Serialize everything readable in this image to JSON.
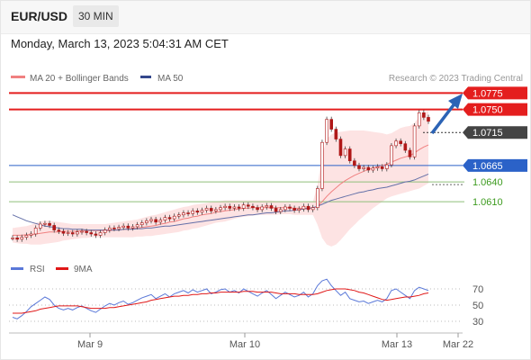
{
  "header": {
    "symbol": "EUR/USD",
    "timeframe": "30 MIN",
    "timestamp": "Monday, March 13, 2023 5:04:31 AM CET"
  },
  "colors": {
    "resistance": "#e41e1e",
    "support": "#2b62c8",
    "pivot": "#444444",
    "target": "#3d9b1f",
    "bollinger_fill": "#fde0e0",
    "ma20": "#f08080",
    "ma50": "#6470a8",
    "rsi": "#5a78d8",
    "rsi_ma": "#e01818",
    "arrow": "#2c63b5",
    "candle": "#b01818"
  },
  "chart_data": [
    {
      "type": "candlestick",
      "legend": [
        {
          "label": "MA 20 + Bollinger Bands",
          "color": "#f08080"
        },
        {
          "label": "MA 50",
          "color": "#34478c"
        }
      ],
      "credit": "Research © 2023 Trading Central",
      "x_ticks": [
        "Mar 9",
        "Mar 10",
        "Mar 13",
        "Mar 22"
      ],
      "ylim": [
        1.0535,
        1.0785
      ],
      "levels": [
        {
          "value": 1.0775,
          "label": "1.0775",
          "role": "resistance"
        },
        {
          "value": 1.075,
          "label": "1.0750",
          "role": "resistance"
        },
        {
          "value": 1.0715,
          "label": "1.0715",
          "role": "pivot"
        },
        {
          "value": 1.0665,
          "label": "1.0665",
          "role": "support"
        },
        {
          "value": 1.064,
          "label": "1.0640",
          "role": "target"
        },
        {
          "value": 1.061,
          "label": "1.0610",
          "role": "target"
        }
      ],
      "close": [
        1.0555,
        1.0553,
        1.0556,
        1.0559,
        1.0561,
        1.057,
        1.0576,
        1.0577,
        1.0574,
        1.0567,
        1.0565,
        1.0562,
        1.0563,
        1.0561,
        1.0564,
        1.0565,
        1.0563,
        1.0561,
        1.0559,
        1.0563,
        1.0567,
        1.057,
        1.0569,
        1.0571,
        1.0573,
        1.057,
        1.0572,
        1.0575,
        1.0578,
        1.0581,
        1.0583,
        1.0579,
        1.0582,
        1.0586,
        1.0584,
        1.0588,
        1.059,
        1.0593,
        1.0592,
        1.0596,
        1.0594,
        1.0597,
        1.06,
        1.0596,
        1.0598,
        1.0601,
        1.0603,
        1.06,
        1.0602,
        1.06,
        1.0605,
        1.0603,
        1.0601,
        1.0598,
        1.0602,
        1.0604,
        1.06,
        1.0595,
        1.0598,
        1.0602,
        1.06,
        1.0597,
        1.0599,
        1.0603,
        1.0598,
        1.0601,
        1.063,
        1.07,
        1.0735,
        1.072,
        1.0705,
        1.068,
        1.069,
        1.0672,
        1.0665,
        1.066,
        1.0662,
        1.0658,
        1.0661,
        1.0663,
        1.066,
        1.0666,
        1.0695,
        1.0702,
        1.0698,
        1.0688,
        1.0678,
        1.0725,
        1.0745,
        1.0738,
        1.0732
      ],
      "ma20": [
        1.0559,
        1.0559,
        1.0559,
        1.056,
        1.056,
        1.0561,
        1.0562,
        1.0563,
        1.0564,
        1.0564,
        1.0564,
        1.0565,
        1.0565,
        1.0565,
        1.0565,
        1.0566,
        1.0566,
        1.0566,
        1.0566,
        1.0566,
        1.0566,
        1.0566,
        1.0567,
        1.0567,
        1.0568,
        1.0568,
        1.0569,
        1.057,
        1.0571,
        1.0572,
        1.0573,
        1.0574,
        1.0576,
        1.0577,
        1.0579,
        1.058,
        1.0582,
        1.0584,
        1.0585,
        1.0587,
        1.0588,
        1.059,
        1.0591,
        1.0592,
        1.0594,
        1.0595,
        1.0596,
        1.0597,
        1.0598,
        1.0599,
        1.06,
        1.06,
        1.0601,
        1.0601,
        1.0601,
        1.0601,
        1.0601,
        1.0601,
        1.0601,
        1.0601,
        1.0601,
        1.06,
        1.06,
        1.06,
        1.06,
        1.06,
        1.0603,
        1.061,
        1.0618,
        1.0625,
        1.0631,
        1.0637,
        1.0642,
        1.0646,
        1.065,
        1.0653,
        1.0656,
        1.0659,
        1.0661,
        1.0663,
        1.0665,
        1.0667,
        1.067,
        1.0673,
        1.0676,
        1.0678,
        1.068,
        1.0684,
        1.0689,
        1.0693,
        1.0696
      ],
      "ma50": [
        1.059,
        1.0587,
        1.0584,
        1.0581,
        1.0579,
        1.0577,
        1.0575,
        1.0573,
        1.0572,
        1.0571,
        1.057,
        1.0569,
        1.0569,
        1.0568,
        1.0568,
        1.0568,
        1.0567,
        1.0567,
        1.0567,
        1.0567,
        1.0567,
        1.0567,
        1.0567,
        1.0567,
        1.0568,
        1.0568,
        1.0568,
        1.0569,
        1.0569,
        1.057,
        1.057,
        1.0571,
        1.0572,
        1.0573,
        1.0573,
        1.0574,
        1.0575,
        1.0576,
        1.0577,
        1.0578,
        1.0579,
        1.058,
        1.0581,
        1.0582,
        1.0583,
        1.0584,
        1.0585,
        1.0586,
        1.0587,
        1.0588,
        1.0589,
        1.059,
        1.059,
        1.0591,
        1.0592,
        1.0593,
        1.0593,
        1.0594,
        1.0595,
        1.0596,
        1.0596,
        1.0597,
        1.0598,
        1.0599,
        1.06,
        1.0601,
        1.0603,
        1.0606,
        1.0609,
        1.0612,
        1.0614,
        1.0616,
        1.0618,
        1.062,
        1.0622,
        1.0624,
        1.0625,
        1.0627,
        1.0628,
        1.063,
        1.0631,
        1.0632,
        1.0634,
        1.0636,
        1.0638,
        1.064,
        1.0641,
        1.0643,
        1.0646,
        1.0649,
        1.0652
      ],
      "bb_upper": [
        1.057,
        1.0571,
        1.0572,
        1.0573,
        1.0575,
        1.0578,
        1.058,
        1.0581,
        1.0581,
        1.058,
        1.0579,
        1.0578,
        1.0577,
        1.0576,
        1.0576,
        1.0576,
        1.0576,
        1.0576,
        1.0576,
        1.0576,
        1.0576,
        1.0577,
        1.0578,
        1.0579,
        1.058,
        1.0581,
        1.0582,
        1.0583,
        1.0585,
        1.0587,
        1.0589,
        1.059,
        1.0592,
        1.0594,
        1.0596,
        1.0598,
        1.06,
        1.0602,
        1.0603,
        1.0605,
        1.0606,
        1.0607,
        1.0608,
        1.0609,
        1.061,
        1.0611,
        1.0612,
        1.0612,
        1.0612,
        1.0612,
        1.0612,
        1.0612,
        1.0612,
        1.0612,
        1.0612,
        1.0612,
        1.0612,
        1.0611,
        1.0611,
        1.0611,
        1.0611,
        1.061,
        1.061,
        1.061,
        1.061,
        1.061,
        1.0635,
        1.068,
        1.0705,
        1.0712,
        1.0715,
        1.0716,
        1.0717,
        1.0718,
        1.0718,
        1.0718,
        1.0718,
        1.0717,
        1.0716,
        1.0715,
        1.0714,
        1.0712,
        1.0714,
        1.0718,
        1.0722,
        1.0724,
        1.0725,
        1.073,
        1.0738,
        1.0744,
        1.0748
      ],
      "bb_lower": [
        1.0548,
        1.0547,
        1.0546,
        1.0546,
        1.0545,
        1.0545,
        1.0545,
        1.0546,
        1.0547,
        1.0548,
        1.0549,
        1.0551,
        1.0552,
        1.0553,
        1.0554,
        1.0555,
        1.0555,
        1.0556,
        1.0556,
        1.0556,
        1.0556,
        1.0556,
        1.0556,
        1.0556,
        1.0556,
        1.0556,
        1.0556,
        1.0557,
        1.0557,
        1.0558,
        1.0558,
        1.0559,
        1.056,
        1.0561,
        1.0562,
        1.0563,
        1.0564,
        1.0566,
        1.0567,
        1.0569,
        1.057,
        1.0572,
        1.0574,
        1.0576,
        1.0578,
        1.0579,
        1.058,
        1.0582,
        1.0584,
        1.0586,
        1.0587,
        1.0588,
        1.0589,
        1.059,
        1.059,
        1.059,
        1.059,
        1.059,
        1.0591,
        1.0591,
        1.0591,
        1.059,
        1.059,
        1.059,
        1.059,
        1.059,
        1.0575,
        1.0555,
        1.0545,
        1.0542,
        1.0545,
        1.0552,
        1.056,
        1.0568,
        1.0575,
        1.0582,
        1.0588,
        1.0594,
        1.06,
        1.0605,
        1.061,
        1.0615,
        1.0618,
        1.062,
        1.0622,
        1.0624,
        1.0626,
        1.0628,
        1.063,
        1.0634,
        1.0638
      ]
    },
    {
      "type": "line",
      "legend": [
        {
          "label": "RSI",
          "color": "#5a78d8"
        },
        {
          "label": "9MA",
          "color": "#e01818"
        }
      ],
      "ylim": [
        20,
        80
      ],
      "y_ticks": [
        70,
        50,
        30
      ],
      "series": [
        {
          "name": "RSI",
          "values": [
            35,
            33,
            37,
            42,
            48,
            52,
            56,
            60,
            57,
            50,
            46,
            44,
            46,
            44,
            47,
            49,
            46,
            43,
            41,
            45,
            49,
            52,
            50,
            53,
            55,
            51,
            53,
            56,
            59,
            61,
            63,
            58,
            61,
            64,
            60,
            64,
            66,
            68,
            65,
            69,
            66,
            68,
            70,
            64,
            66,
            69,
            70,
            66,
            68,
            65,
            70,
            67,
            64,
            61,
            65,
            68,
            63,
            58,
            62,
            66,
            63,
            60,
            62,
            66,
            60,
            64,
            74,
            80,
            82,
            74,
            68,
            62,
            66,
            58,
            56,
            54,
            55,
            52,
            54,
            56,
            54,
            58,
            68,
            70,
            66,
            62,
            58,
            68,
            72,
            70,
            68
          ]
        },
        {
          "name": "9MA",
          "values": [
            40,
            40,
            40,
            41,
            42,
            43,
            45,
            46,
            47,
            48,
            49,
            49,
            49,
            49,
            49,
            48,
            47,
            46,
            46,
            46,
            46,
            47,
            47,
            48,
            49,
            50,
            51,
            52,
            53,
            54,
            56,
            57,
            58,
            59,
            60,
            61,
            61,
            62,
            62,
            63,
            63,
            64,
            64,
            65,
            65,
            66,
            66,
            66,
            66,
            66,
            67,
            67,
            67,
            66,
            66,
            66,
            66,
            65,
            64,
            64,
            64,
            64,
            63,
            63,
            63,
            63,
            64,
            66,
            68,
            69,
            70,
            70,
            70,
            69,
            68,
            66,
            65,
            63,
            61,
            59,
            57,
            56,
            57,
            58,
            59,
            60,
            60,
            61,
            62,
            64,
            65
          ]
        }
      ]
    }
  ]
}
